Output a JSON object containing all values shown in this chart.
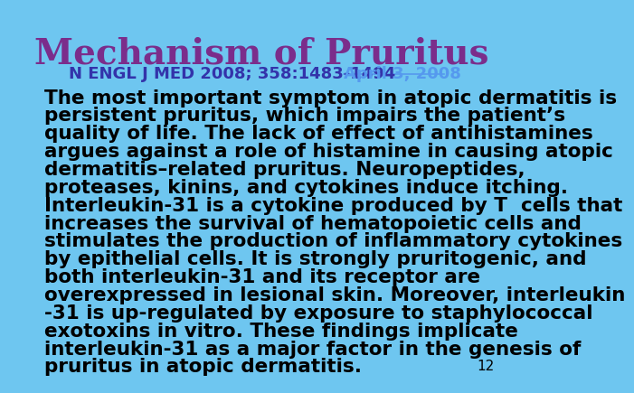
{
  "title": "Mechanism of Pruritus",
  "title_color": "#7B2D8B",
  "title_fontsize": 28,
  "subtitle_plain": "N ENGL J MED 2008; 358:1483-1494",
  "subtitle_link": "April 3, 2008",
  "subtitle_plain_color": "#3333AA",
  "subtitle_link_color": "#5599EE",
  "subtitle_fontsize": 13,
  "body_lines": [
    "The most important symptom in atopic dermatitis is",
    "persistent pruritus, which impairs the patient’s",
    "quality of life. The lack of effect of antihistamines",
    "argues against a role of histamine in causing atopic",
    "dermatitis–related pruritus. Neuropeptides,",
    "proteases, kinins, and cytokines induce itching.",
    "Interleukin-31 is a cytokine produced by T  cells that",
    "increases the survival of hematopoietic cells and",
    "stimulates the production of inflammatory cytokines",
    "by epithelial cells. It is strongly pruritogenic, and",
    "both interleukin-31 and its receptor are",
    "overexpressed in lesional skin. Moreover, interleukin",
    "-31 is up-regulated by exposure to staphylococcal",
    "exotoxins in vitro. These findings implicate",
    "interleukin-31 as a major factor in the genesis of",
    "pruritus in atopic dermatitis."
  ],
  "body_color": "#000000",
  "body_fontsize": 15.5,
  "body_linespacing": 1.28,
  "page_number": "12",
  "page_number_color": "#000000",
  "background_color": "#6EC6F0"
}
